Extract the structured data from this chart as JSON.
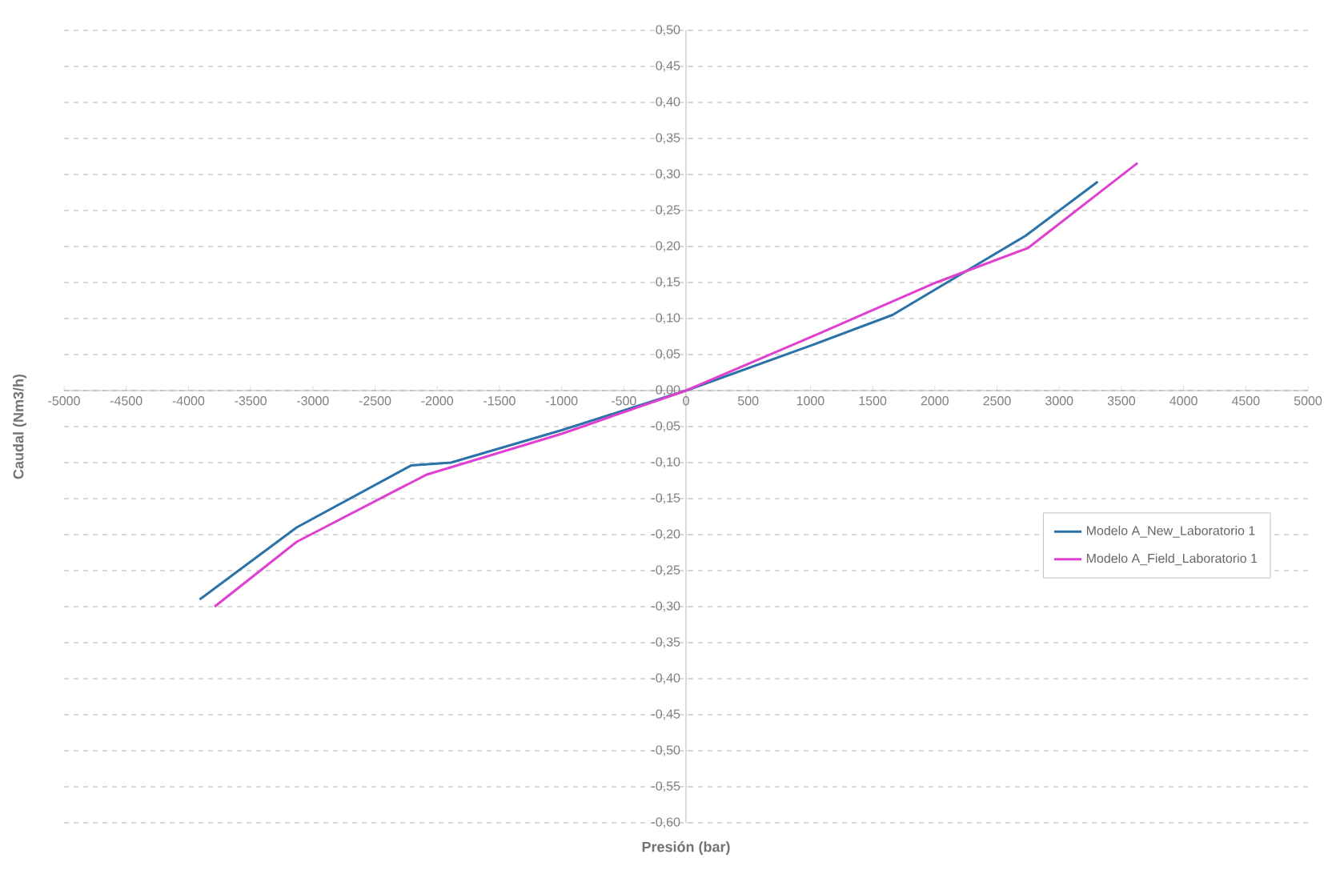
{
  "chart_data": {
    "type": "line",
    "xlabel": "Presión (bar)",
    "ylabel": "Caudal (Nm3/h)",
    "xlim": [
      -5000,
      5000
    ],
    "ylim": [
      -0.6,
      0.5
    ],
    "xticks": [
      -5000,
      -4500,
      -4000,
      -3500,
      -3000,
      -2500,
      -2000,
      -1500,
      -1000,
      -500,
      0,
      500,
      1000,
      1500,
      2000,
      2500,
      3000,
      3500,
      4000,
      4500,
      5000
    ],
    "yticks": [
      {
        "value": 0.5,
        "label": "0,50"
      },
      {
        "value": 0.45,
        "label": "0,45"
      },
      {
        "value": 0.4,
        "label": "0,40"
      },
      {
        "value": 0.35,
        "label": "0,35"
      },
      {
        "value": 0.3,
        "label": "0,30"
      },
      {
        "value": 0.25,
        "label": "0,25"
      },
      {
        "value": 0.2,
        "label": "0,20"
      },
      {
        "value": 0.15,
        "label": "0,15"
      },
      {
        "value": 0.1,
        "label": "0,10"
      },
      {
        "value": 0.05,
        "label": "0,05"
      },
      {
        "value": 0,
        "label": "0,00"
      },
      {
        "value": -0.05,
        "label": "-0,05"
      },
      {
        "value": -0.1,
        "label": "-0,10"
      },
      {
        "value": -0.15,
        "label": "-0,15"
      },
      {
        "value": -0.2,
        "label": "-0,20"
      },
      {
        "value": -0.25,
        "label": "-0,25"
      },
      {
        "value": -0.3,
        "label": "-0,30"
      },
      {
        "value": -0.35,
        "label": "-0,35"
      },
      {
        "value": -0.4,
        "label": "-0,40"
      },
      {
        "value": -0.45,
        "label": "-0,45"
      },
      {
        "value": -0.5,
        "label": "-0,50"
      },
      {
        "value": -0.55,
        "label": "-0,55"
      },
      {
        "value": -0.6,
        "label": "-0,60"
      }
    ],
    "grid": "y",
    "legend": "right",
    "marker": "none",
    "line_style": "solid",
    "series": [
      {
        "name": "Modelo A_New_Laboratorio 1",
        "color": "#2a72a8",
        "x": [
          -3910,
          -3130,
          -2210,
          -1890,
          -1000,
          0,
          1010,
          1660,
          2730,
          3310
        ],
        "values": [
          -0.29,
          -0.19,
          -0.104,
          -0.1,
          -0.055,
          0,
          0.063,
          0.105,
          0.215,
          0.29
        ]
      },
      {
        "name": "Modelo A_Field_Laboratorio 1",
        "color": "#e040d0",
        "x": [
          -3790,
          -3130,
          -2090,
          -1000,
          0,
          1000,
          2010,
          2750,
          3630
        ],
        "values": [
          -0.3,
          -0.21,
          -0.117,
          -0.06,
          0,
          0.074,
          0.15,
          0.198,
          0.316
        ]
      }
    ]
  }
}
